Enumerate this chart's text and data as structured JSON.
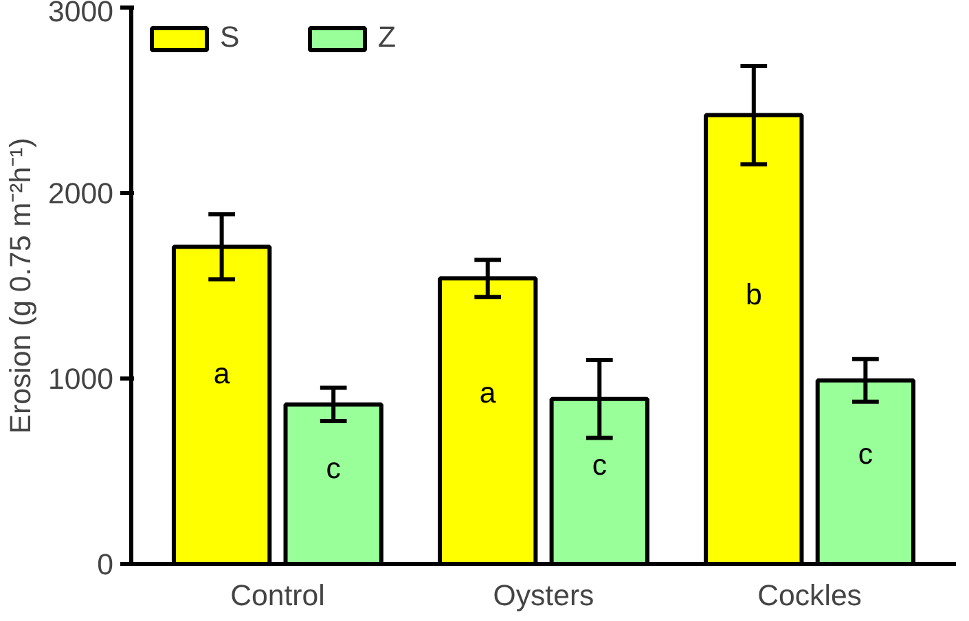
{
  "chart_data": {
    "type": "bar",
    "ylabel": "Erosion (g 0.75 m⁻²h⁻¹)",
    "categories": [
      "Control",
      "Oysters",
      "Cockles"
    ],
    "series": [
      {
        "name": "S",
        "color": "#ffff00",
        "values": [
          1710,
          1540,
          2420
        ],
        "errors": [
          175,
          100,
          265
        ],
        "value_labels": [
          "a",
          "a",
          "b"
        ]
      },
      {
        "name": "Z",
        "color": "#99ff99",
        "values": [
          860,
          890,
          990
        ],
        "errors": [
          90,
          210,
          115
        ],
        "value_labels": [
          "c",
          "c",
          "c"
        ]
      }
    ],
    "ylim": [
      0,
      3000
    ],
    "yticks": [
      0,
      1000,
      2000,
      3000
    ],
    "grid": false,
    "legend": "top left"
  }
}
